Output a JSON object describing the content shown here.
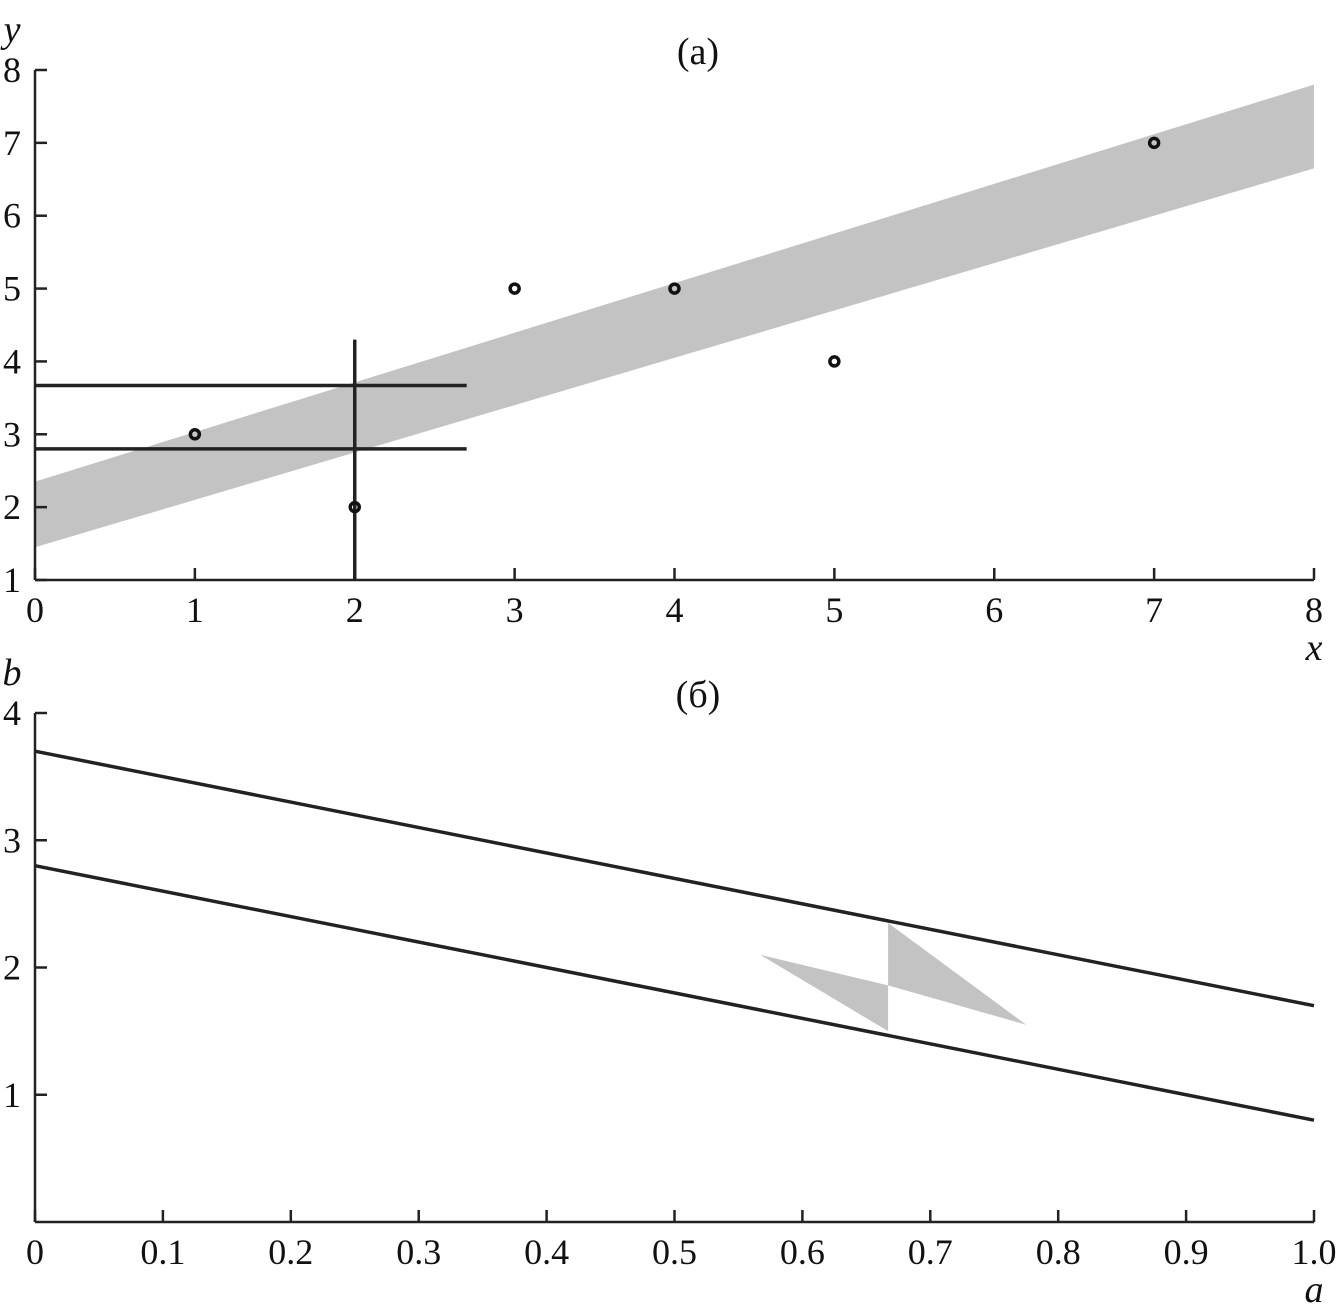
{
  "colors": {
    "band": "#c3c3c3",
    "line": "#222222",
    "background": "#ffffff"
  },
  "chart_data": [
    {
      "type": "scatter",
      "panel_label": "(a)",
      "xlabel": "x",
      "ylabel": "y",
      "xlim": [
        0,
        8
      ],
      "ylim": [
        1,
        8
      ],
      "xticks": [
        0,
        1,
        2,
        3,
        4,
        5,
        6,
        7,
        8
      ],
      "yticks": [
        1,
        2,
        3,
        4,
        5,
        6,
        7,
        8
      ],
      "points": [
        {
          "x": 1,
          "y": 3
        },
        {
          "x": 2,
          "y": 2
        },
        {
          "x": 3,
          "y": 5
        },
        {
          "x": 4,
          "y": 5
        },
        {
          "x": 5,
          "y": 4
        },
        {
          "x": 7,
          "y": 7
        }
      ],
      "band": {
        "upper": [
          {
            "x": 0,
            "y": 2.35
          },
          {
            "x": 8,
            "y": 7.8
          }
        ],
        "lower": [
          {
            "x": 0,
            "y": 1.45
          },
          {
            "x": 8,
            "y": 6.65
          }
        ]
      },
      "reference_lines": [
        {
          "orientation": "horizontal",
          "y": 3.67,
          "x_from": 0,
          "x_to": 2.7
        },
        {
          "orientation": "horizontal",
          "y": 2.8,
          "x_from": 0,
          "x_to": 2.7
        },
        {
          "orientation": "vertical",
          "x": 2,
          "y_from": 1,
          "y_to": 4.3
        }
      ],
      "grid": false
    },
    {
      "type": "line",
      "panel_label": "(б)",
      "xlabel": "a",
      "ylabel": "b",
      "xlim": [
        0,
        1.0
      ],
      "ylim": [
        0,
        4
      ],
      "xticks": [
        "0",
        "0.1",
        "0.2",
        "0.3",
        "0.4",
        "0.5",
        "0.6",
        "0.7",
        "0.8",
        "0.9",
        "1.0"
      ],
      "yticks": [
        "1",
        "2",
        "3",
        "4"
      ],
      "lines": [
        {
          "points": [
            {
              "x": 0,
              "y": 3.7
            },
            {
              "x": 1.0,
              "y": 1.7
            }
          ]
        },
        {
          "points": [
            {
              "x": 0,
              "y": 2.8
            },
            {
              "x": 1.0,
              "y": 0.8
            }
          ]
        }
      ],
      "shaded_polygons": [
        [
          {
            "x": 0.567,
            "y": 2.1
          },
          {
            "x": 0.667,
            "y": 1.86
          },
          {
            "x": 0.667,
            "y": 1.5
          }
        ],
        [
          {
            "x": 0.667,
            "y": 2.35
          },
          {
            "x": 0.667,
            "y": 1.86
          },
          {
            "x": 0.775,
            "y": 1.55
          }
        ]
      ],
      "grid": false
    }
  ]
}
